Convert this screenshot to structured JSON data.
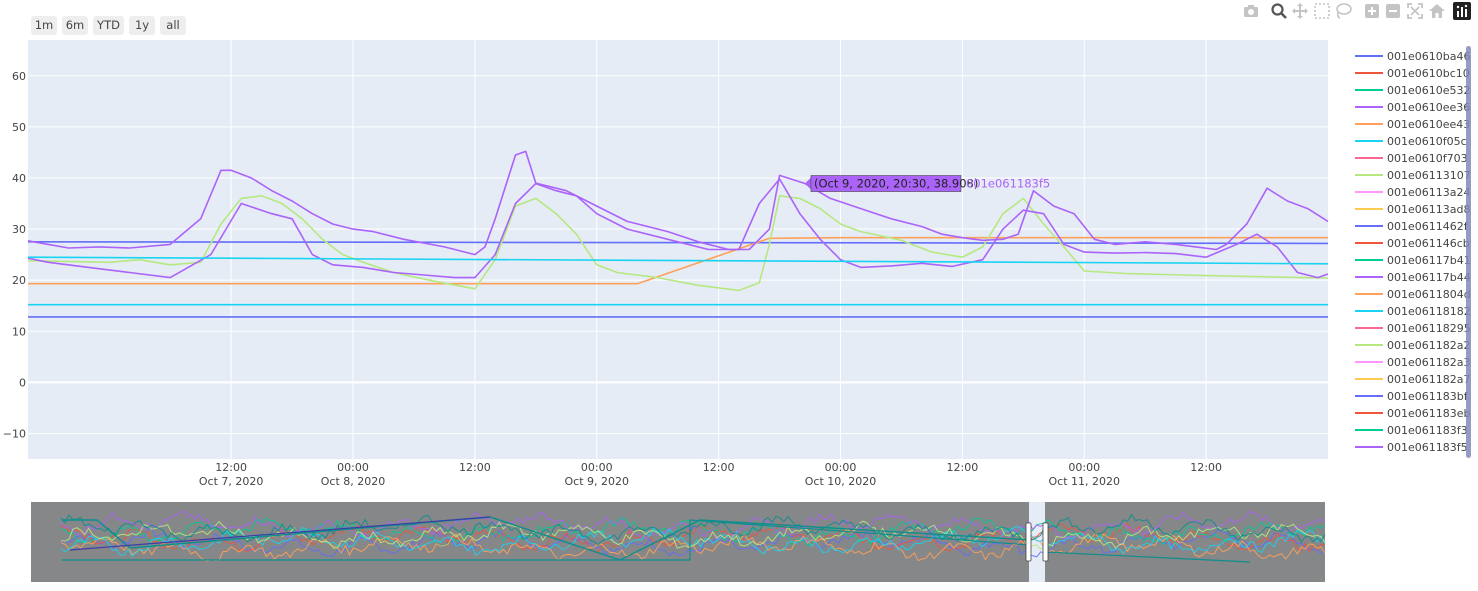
{
  "range_selector": {
    "buttons": [
      "1m",
      "6m",
      "YTD",
      "1y",
      "all"
    ]
  },
  "modebar": {
    "icons": [
      "camera-icon",
      "zoom-icon",
      "pan-icon",
      "box-select-icon",
      "lasso-icon",
      "zoom-in-icon",
      "zoom-out-icon",
      "autoscale-icon",
      "reset-axes-icon",
      "plotly-logo-icon"
    ]
  },
  "colors": {
    "plot_bg": "#e5ecf6",
    "rangeslider_bg": "#858788",
    "hover_bg": "#ab63fa"
  },
  "hover": {
    "text": "(Oct 9, 2020, 20:30, 38.908)",
    "series": "001e061183f5"
  },
  "chart_data": {
    "type": "line",
    "title": "",
    "xlabel": "",
    "ylabel": "",
    "ylim": [
      -15,
      67
    ],
    "x_range": [
      "2020-10-06 16:00",
      "2020-10-12 00:00"
    ],
    "yticks": [
      "60",
      "50",
      "40",
      "30",
      "20",
      "10",
      "0",
      "−10"
    ],
    "xticks": [
      {
        "t": "2020-10-07 12:00",
        "line1": "12:00",
        "line2": "Oct 7, 2020"
      },
      {
        "t": "2020-10-08 00:00",
        "line1": "00:00",
        "line2": "Oct 8, 2020"
      },
      {
        "t": "2020-10-08 12:00",
        "line1": "12:00",
        "line2": ""
      },
      {
        "t": "2020-10-09 00:00",
        "line1": "00:00",
        "line2": "Oct 9, 2020"
      },
      {
        "t": "2020-10-09 12:00",
        "line1": "12:00",
        "line2": ""
      },
      {
        "t": "2020-10-10 00:00",
        "line1": "00:00",
        "line2": "Oct 10, 2020"
      },
      {
        "t": "2020-10-10 12:00",
        "line1": "12:00",
        "line2": ""
      },
      {
        "t": "2020-10-11 00:00",
        "line1": "00:00",
        "line2": "Oct 11, 2020"
      },
      {
        "t": "2020-10-11 12:00",
        "line1": "12:00",
        "line2": ""
      }
    ],
    "legend_position": "right",
    "grid": true,
    "rangeslider": true,
    "series": [
      {
        "name": "001e0610ba46",
        "color": "#636efa",
        "x": [
          "2020-10-06 16:00",
          "2020-10-12 00:00"
        ],
        "y": [
          27.5,
          27.2
        ]
      },
      {
        "name": "001e0610bc10",
        "color": "#ef553b",
        "x": [],
        "y": []
      },
      {
        "name": "001e0610e532",
        "color": "#00cc96",
        "x": [],
        "y": []
      },
      {
        "name": "001e0610ee36",
        "color": "#ab63fa",
        "x": [],
        "y": []
      },
      {
        "name": "001e0610ee43",
        "color": "#ffa15a",
        "x": [
          "2020-10-06 16:00",
          "2020-10-09 04:00",
          "2020-10-09 17:00",
          "2020-10-10 00:00",
          "2020-10-12 00:00"
        ],
        "y": [
          19.3,
          19.3,
          28.2,
          28.3,
          28.3
        ]
      },
      {
        "name": "001e0610f05c",
        "color": "#19d3f3",
        "x": [
          "2020-10-06 16:00",
          "2020-10-12 00:00"
        ],
        "y": [
          15.2,
          15.2
        ]
      },
      {
        "name": "001e0610f703",
        "color": "#ff6692",
        "x": [],
        "y": []
      },
      {
        "name": "001e06113107",
        "color": "#b6e880",
        "x": [
          "2020-10-06 16:00",
          "2020-10-07 00:00",
          "2020-10-07 03:00",
          "2020-10-07 06:00",
          "2020-10-07 09:00",
          "2020-10-07 11:00",
          "2020-10-07 13:00",
          "2020-10-07 15:00",
          "2020-10-07 17:00",
          "2020-10-07 19:00",
          "2020-10-07 21:00",
          "2020-10-07 23:00",
          "2020-10-08 01:00",
          "2020-10-08 04:00",
          "2020-10-08 08:00",
          "2020-10-08 12:00",
          "2020-10-08 14:00",
          "2020-10-08 16:00",
          "2020-10-08 18:00",
          "2020-10-08 20:00",
          "2020-10-08 22:00",
          "2020-10-09 00:00",
          "2020-10-09 02:00",
          "2020-10-09 06:00",
          "2020-10-09 10:00",
          "2020-10-09 14:00",
          "2020-10-09 16:00",
          "2020-10-09 17:00",
          "2020-10-09 18:00",
          "2020-10-09 20:00",
          "2020-10-09 22:00",
          "2020-10-10 00:00",
          "2020-10-10 02:00",
          "2020-10-10 06:00",
          "2020-10-10 09:00",
          "2020-10-10 12:00",
          "2020-10-10 14:00",
          "2020-10-10 16:00",
          "2020-10-10 18:00",
          "2020-10-10 20:00",
          "2020-10-10 22:00",
          "2020-10-11 00:00",
          "2020-10-11 04:00",
          "2020-10-11 08:00",
          "2020-10-11 12:00",
          "2020-10-12 00:00"
        ],
        "y": [
          23.8,
          23.5,
          24,
          23,
          23.5,
          31,
          36,
          36.5,
          35,
          32,
          28,
          25,
          23.5,
          21.5,
          19.8,
          18.3,
          24,
          34.5,
          36,
          33,
          29,
          23,
          21.5,
          20.5,
          19,
          18,
          19.5,
          27,
          36.5,
          36,
          34,
          31,
          29.5,
          27.8,
          25.5,
          24.5,
          26.5,
          33,
          36,
          31,
          26.5,
          21.8,
          21.3,
          21.1,
          20.9,
          20.4
        ]
      },
      {
        "name": "001e06113a24",
        "color": "#ff97ff",
        "x": [],
        "y": []
      },
      {
        "name": "001e06113ad8",
        "color": "#fecb52",
        "x": [],
        "y": []
      },
      {
        "name": "001e0611462f",
        "color": "#636efa",
        "x": [
          "2020-10-06 16:00",
          "2020-10-12 00:00"
        ],
        "y": [
          12.8,
          12.8
        ]
      },
      {
        "name": "001e061146cb",
        "color": "#ef553b",
        "x": [],
        "y": []
      },
      {
        "name": "001e06117b41",
        "color": "#00cc96",
        "x": [],
        "y": []
      },
      {
        "name": "001e06117b44",
        "color": "#ab63fa",
        "x": [
          "2020-10-06 16:00",
          "2020-10-06 18:00",
          "2020-10-06 22:00",
          "2020-10-07 02:00",
          "2020-10-07 06:00",
          "2020-10-07 10:00",
          "2020-10-07 13:00",
          "2020-10-07 16:00",
          "2020-10-07 18:00",
          "2020-10-07 20:00",
          "2020-10-07 22:00",
          "2020-10-08 01:00",
          "2020-10-08 04:00",
          "2020-10-08 07:00",
          "2020-10-08 10:00",
          "2020-10-08 12:00",
          "2020-10-08 14:00",
          "2020-10-08 16:00",
          "2020-10-08 18:00",
          "2020-10-08 20:00",
          "2020-10-08 22:00",
          "2020-10-09 00:00",
          "2020-10-09 03:00",
          "2020-10-09 07:00",
          "2020-10-09 11:00",
          "2020-10-09 14:00",
          "2020-10-09 16:00",
          "2020-10-09 18:00",
          "2020-10-09 20:00",
          "2020-10-09 22:00",
          "2020-10-10 00:00",
          "2020-10-10 02:00",
          "2020-10-10 05:00",
          "2020-10-10 08:00",
          "2020-10-10 11:00",
          "2020-10-10 14:00",
          "2020-10-10 16:00",
          "2020-10-10 18:00",
          "2020-10-10 20:00",
          "2020-10-10 22:00",
          "2020-10-11 00:00",
          "2020-10-11 03:00",
          "2020-10-11 06:00",
          "2020-10-11 09:00",
          "2020-10-11 12:00",
          "2020-10-11 15:00",
          "2020-10-11 17:00",
          "2020-10-11 19:00",
          "2020-10-11 21:00",
          "2020-10-11 23:00",
          "2020-10-12 00:00"
        ],
        "y": [
          24.3,
          23.5,
          22.5,
          21.5,
          20.5,
          25,
          35,
          33,
          32,
          25,
          23,
          22.5,
          21.5,
          21,
          20.5,
          20.5,
          25,
          35,
          38.9,
          37.5,
          36.5,
          33,
          30,
          28,
          26,
          26,
          35,
          39.8,
          33,
          28,
          24,
          22.5,
          22.8,
          23.3,
          22.7,
          24,
          30,
          33.7,
          33,
          27,
          25.5,
          25.3,
          25.4,
          25.2,
          24.5,
          27,
          29,
          26.5,
          21.5,
          20.5,
          21.2
        ]
      },
      {
        "name": "001e0611804d",
        "color": "#ffa15a",
        "x": [],
        "y": []
      },
      {
        "name": "001e06118182",
        "color": "#19d3f3",
        "x": [
          "2020-10-06 16:00",
          "2020-10-12 00:00"
        ],
        "y": [
          24.5,
          23.2
        ]
      },
      {
        "name": "001e06118295",
        "color": "#ff6692",
        "x": [],
        "y": []
      },
      {
        "name": "001e061182a2",
        "color": "#b6e880",
        "x": [],
        "y": []
      },
      {
        "name": "001e061182a3",
        "color": "#ff97ff",
        "x": [],
        "y": []
      },
      {
        "name": "001e061182a7",
        "color": "#fecb52",
        "x": [],
        "y": []
      },
      {
        "name": "001e061183bf",
        "color": "#636efa",
        "x": [],
        "y": []
      },
      {
        "name": "001e061183eb",
        "color": "#ef553b",
        "x": [],
        "y": []
      },
      {
        "name": "001e061183f3",
        "color": "#00cc96",
        "x": [],
        "y": []
      },
      {
        "name": "001e061183f5",
        "color": "#ab63fa",
        "x": [
          "2020-10-06 16:00",
          "2020-10-06 18:00",
          "2020-10-06 20:00",
          "2020-10-06 23:00",
          "2020-10-07 02:00",
          "2020-10-07 06:00",
          "2020-10-07 09:00",
          "2020-10-07 11:00",
          "2020-10-07 12:00",
          "2020-10-07 14:00",
          "2020-10-07 16:00",
          "2020-10-07 18:00",
          "2020-10-07 20:00",
          "2020-10-07 22:00",
          "2020-10-08 00:00",
          "2020-10-08 02:00",
          "2020-10-08 05:00",
          "2020-10-08 09:00",
          "2020-10-08 12:00",
          "2020-10-08 13:00",
          "2020-10-08 14:00",
          "2020-10-08 16:00",
          "2020-10-08 17:00",
          "2020-10-08 18:00",
          "2020-10-08 21:00",
          "2020-10-09 00:00",
          "2020-10-09 03:00",
          "2020-10-09 07:00",
          "2020-10-09 10:00",
          "2020-10-09 13:00",
          "2020-10-09 15:00",
          "2020-10-09 17:00",
          "2020-10-09 18:00",
          "2020-10-09 20:30",
          "2020-10-09 23:00",
          "2020-10-10 02:00",
          "2020-10-10 05:00",
          "2020-10-10 08:00",
          "2020-10-10 10:00",
          "2020-10-10 12:00",
          "2020-10-10 14:00",
          "2020-10-10 16:00",
          "2020-10-10 17:30",
          "2020-10-10 19:00",
          "2020-10-10 21:00",
          "2020-10-10 23:00",
          "2020-10-11 01:00",
          "2020-10-11 03:00",
          "2020-10-11 06:00",
          "2020-10-11 09:00",
          "2020-10-11 11:00",
          "2020-10-11 13:00",
          "2020-10-11 14:00",
          "2020-10-11 16:00",
          "2020-10-11 18:00",
          "2020-10-11 20:00",
          "2020-10-11 22:00",
          "2020-10-12 00:00"
        ],
        "y": [
          27.7,
          27,
          26.3,
          26.5,
          26.3,
          27,
          32,
          41.5,
          41.5,
          40,
          37.5,
          35.5,
          33,
          31,
          30,
          29.5,
          28,
          26.5,
          25,
          26.5,
          32,
          44.5,
          45.2,
          39,
          37.5,
          34.5,
          31.5,
          29.5,
          27.5,
          26,
          26,
          30,
          40.5,
          38.908,
          36,
          34,
          32,
          30.5,
          29,
          28.3,
          27.8,
          28,
          29,
          37.5,
          34.5,
          33,
          28,
          27,
          27.5,
          27,
          26.5,
          26,
          27,
          31,
          38,
          35.5,
          34,
          31.5
        ]
      }
    ]
  },
  "rangeslider_bands": [
    {
      "color": "#636efa"
    },
    {
      "color": "#ef553b"
    },
    {
      "color": "#00cc96"
    },
    {
      "color": "#ab63fa"
    },
    {
      "color": "#ffa15a"
    },
    {
      "color": "#19d3f3"
    },
    {
      "color": "#b6e880"
    },
    {
      "color": "#0e8e8e"
    }
  ]
}
